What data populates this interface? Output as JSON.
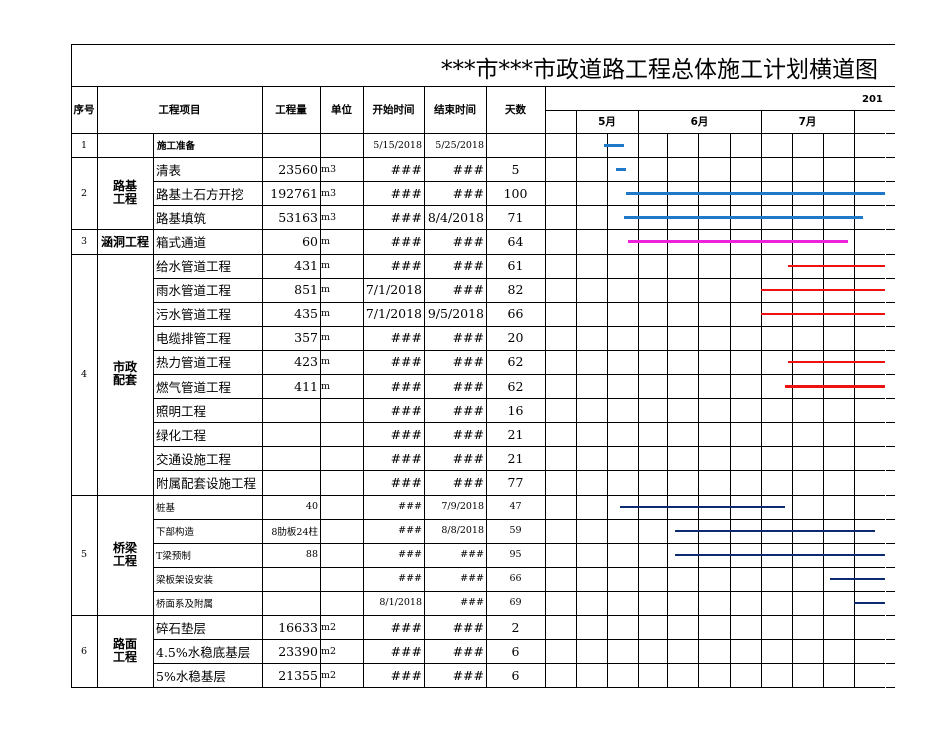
{
  "title": "***市***市政道路工程总体施工计划横道图",
  "year_label": "201",
  "headers": {
    "seq": "序号",
    "project": "工程项目",
    "qty": "工程量",
    "unit": "单位",
    "start": "开始时间",
    "end": "结束时间",
    "days": "天数"
  },
  "months": [
    "5月",
    "6月",
    "7月"
  ],
  "groups": [
    {
      "seq": "1",
      "name": "施工准备"
    },
    {
      "seq": "2",
      "name": "路基工程"
    },
    {
      "seq": "3",
      "name": "涵洞工程"
    },
    {
      "seq": "4",
      "name": "市政配套"
    },
    {
      "seq": "5",
      "name": "桥梁工程"
    },
    {
      "seq": "6",
      "name": "路面工程"
    }
  ],
  "rows": [
    {
      "item": "",
      "qty": "",
      "unit": "",
      "start": "5/15/2018",
      "end": "5/25/2018",
      "days": ""
    },
    {
      "item": "清表",
      "qty": "23560",
      "unit": "m3",
      "start": "###",
      "end": "###",
      "days": "5"
    },
    {
      "item": "路基土石方开挖",
      "qty": "192761",
      "unit": "m3",
      "start": "###",
      "end": "###",
      "days": "100"
    },
    {
      "item": "路基填筑",
      "qty": "53163",
      "unit": "m3",
      "start": "###",
      "end": "8/4/2018",
      "days": "71"
    },
    {
      "item": "箱式通道",
      "qty": "60",
      "unit": "m",
      "start": "###",
      "end": "###",
      "days": "64"
    },
    {
      "item": "给水管道工程",
      "qty": "431",
      "unit": "m",
      "start": "###",
      "end": "###",
      "days": "61"
    },
    {
      "item": "雨水管道工程",
      "qty": "851",
      "unit": "m",
      "start": "7/1/2018",
      "end": "###",
      "days": "82"
    },
    {
      "item": "污水管道工程",
      "qty": "435",
      "unit": "m",
      "start": "7/1/2018",
      "end": "9/5/2018",
      "days": "66"
    },
    {
      "item": "电缆排管工程",
      "qty": "357",
      "unit": "m",
      "start": "###",
      "end": "###",
      "days": "20"
    },
    {
      "item": "热力管道工程",
      "qty": "423",
      "unit": "m",
      "start": "###",
      "end": "###",
      "days": "62"
    },
    {
      "item": "燃气管道工程",
      "qty": "411",
      "unit": "m",
      "start": "###",
      "end": "###",
      "days": "62"
    },
    {
      "item": "照明工程",
      "qty": "",
      "unit": "",
      "start": "###",
      "end": "###",
      "days": "16"
    },
    {
      "item": "绿化工程",
      "qty": "",
      "unit": "",
      "start": "###",
      "end": "###",
      "days": "21"
    },
    {
      "item": "交通设施工程",
      "qty": "",
      "unit": "",
      "start": "###",
      "end": "###",
      "days": "21"
    },
    {
      "item": "附属配套设施工程",
      "qty": "",
      "unit": "",
      "start": "###",
      "end": "###",
      "days": "77"
    },
    {
      "item": "桩基",
      "qty": "40",
      "unit": "",
      "start": "###",
      "end": "7/9/2018",
      "days": "47"
    },
    {
      "item": "下部构造",
      "qty": "8肋板24柱",
      "unit": "",
      "start": "###",
      "end": "8/8/2018",
      "days": "59"
    },
    {
      "item": "T梁预制",
      "qty": "88",
      "unit": "",
      "start": "###",
      "end": "###",
      "days": "95"
    },
    {
      "item": "梁板架设安装",
      "qty": "",
      "unit": "",
      "start": "###",
      "end": "###",
      "days": "66"
    },
    {
      "item": "桥面系及附属",
      "qty": "",
      "unit": "",
      "start": "8/1/2018",
      "end": "###",
      "days": "69"
    },
    {
      "item": "碎石垫层",
      "qty": "16633",
      "unit": "m2",
      "start": "###",
      "end": "###",
      "days": "2"
    },
    {
      "item": "4.5%水稳底基层",
      "qty": "23390",
      "unit": "m2",
      "start": "###",
      "end": "###",
      "days": "6"
    },
    {
      "item": "5%水稳基层",
      "qty": "21355",
      "unit": "m2",
      "start": "###",
      "end": "###",
      "days": "6"
    }
  ],
  "bar_colors": {
    "prep": "#1f78c8",
    "earthwork": "#1f78c8",
    "culvert": "#ee22dd",
    "municipal": "#ee1111",
    "bridge": "#0c2a6e"
  },
  "gantt_bars": [
    {
      "row": 0,
      "start_date": "5/15/2018",
      "end_date": "5/25/2018",
      "color": "#1f78c8"
    },
    {
      "row": 1,
      "start_date": "5/21/2018",
      "end_date": "5/26/2018",
      "color": "#1f78c8"
    },
    {
      "row": 2,
      "start_date": "5/26/2018",
      "end_date": "9/3/2018",
      "color": "#1f78c8"
    },
    {
      "row": 3,
      "start_date": "5/25/2018",
      "end_date": "8/4/2018",
      "color": "#1f78c8"
    },
    {
      "row": 4,
      "start_date": "5/27/2018",
      "end_date": "7/30/2018",
      "color": "#ee22dd"
    },
    {
      "row": 5,
      "start_date": "7/10/2018",
      "end_date": "9/9/2018",
      "color": "#ee1111"
    },
    {
      "row": 6,
      "start_date": "7/1/2018",
      "end_date": "9/21/2018",
      "color": "#ee1111"
    },
    {
      "row": 7,
      "start_date": "7/1/2018",
      "end_date": "9/5/2018",
      "color": "#ee1111"
    },
    {
      "row": 9,
      "start_date": "7/10/2018",
      "end_date": "9/10/2018",
      "color": "#ee1111"
    },
    {
      "row": 10,
      "start_date": "7/9/2018",
      "end_date": "9/9/2018",
      "color": "#ee1111"
    },
    {
      "row": 15,
      "start_date": "5/23/2018",
      "end_date": "7/9/2018",
      "color": "#0c2a6e"
    },
    {
      "row": 16,
      "start_date": "6/10/2018",
      "end_date": "8/8/2018",
      "color": "#0c2a6e"
    },
    {
      "row": 17,
      "start_date": "6/10/2018",
      "end_date": "9/13/2018",
      "color": "#0c2a6e"
    },
    {
      "row": 18,
      "start_date": "7/24/2018",
      "end_date": "9/28/2018",
      "color": "#0c2a6e"
    },
    {
      "row": 19,
      "start_date": "8/1/2018",
      "end_date": "10/9/2018",
      "color": "#0c2a6e"
    }
  ]
}
